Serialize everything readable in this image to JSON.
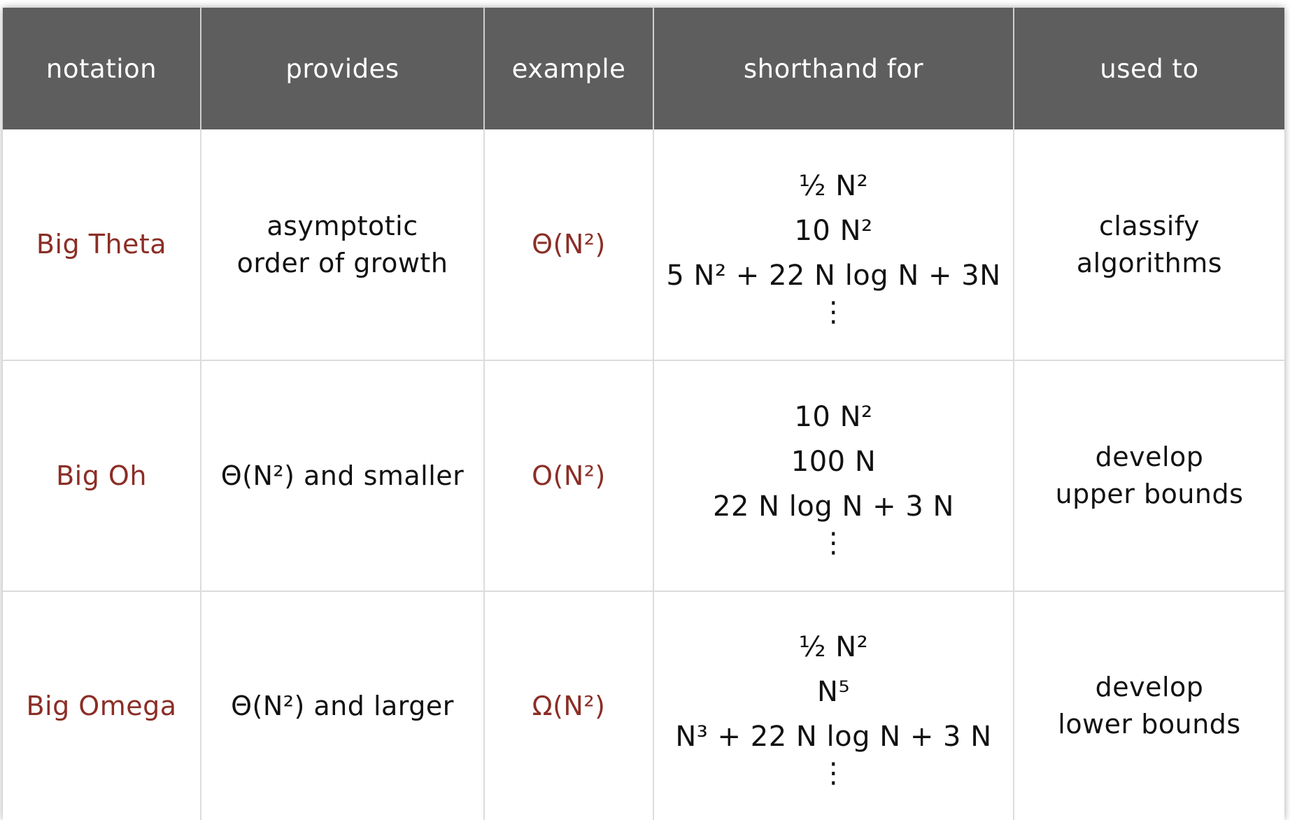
{
  "table": {
    "headers": [
      "notation",
      "provides",
      "example",
      "shorthand for",
      "used to"
    ],
    "rows": [
      {
        "notation": "Big Theta",
        "provides": [
          "asymptotic",
          "order of growth"
        ],
        "example": "Θ(N²)",
        "shorthand": [
          "½ N²",
          "10 N²",
          "5 N² + 22 N log N + 3N",
          "⋮"
        ],
        "used_to": [
          "classify",
          "algorithms"
        ]
      },
      {
        "notation": "Big Oh",
        "provides": [
          "Θ(N²) and smaller"
        ],
        "example": "O(N²)",
        "shorthand": [
          "10 N²",
          "100 N",
          "22 N log N + 3 N",
          "⋮"
        ],
        "used_to": [
          "develop",
          "upper bounds"
        ]
      },
      {
        "notation": "Big Omega",
        "provides": [
          "Θ(N²) and larger"
        ],
        "example": "Ω(N²)",
        "shorthand": [
          "½ N²",
          "N⁵",
          "N³ + 22 N log N + 3 N",
          "⋮"
        ],
        "used_to": [
          "develop",
          "lower bounds"
        ]
      }
    ]
  },
  "colors": {
    "header_bg": "#5e5e5e",
    "header_text": "#ffffff",
    "accent": "#8b2e26",
    "grid": "#dcdcdc",
    "body_text": "#111111"
  }
}
